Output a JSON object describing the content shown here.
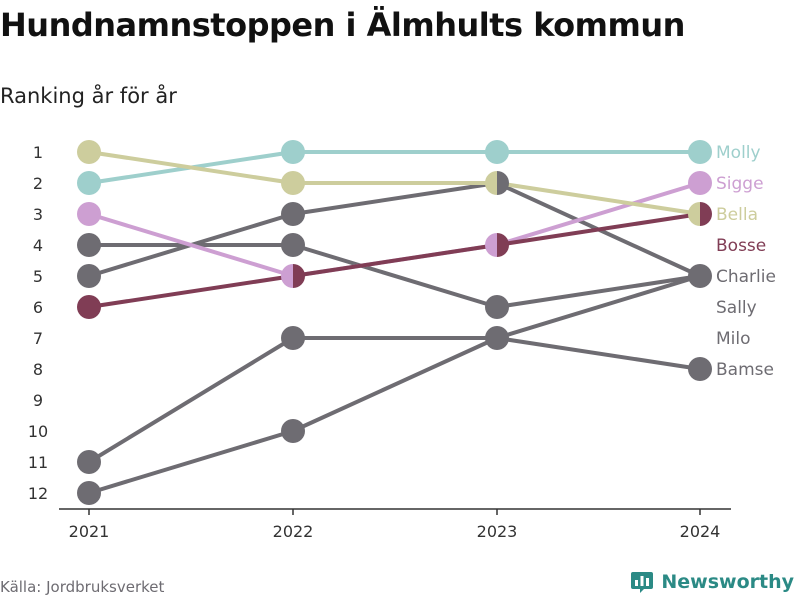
{
  "title": "Hundnamnstoppen i Älmhults kommun",
  "subtitle": "Ranking år för år",
  "source": "Källa: Jordbruksverket",
  "brand": "Newsworthy",
  "chart_data": {
    "type": "line",
    "x": [
      "2021",
      "2022",
      "2023",
      "2024"
    ],
    "y_ticks": [
      1,
      2,
      3,
      4,
      5,
      6,
      7,
      8,
      9,
      10,
      11,
      12
    ],
    "ylim": [
      1,
      12
    ],
    "y_reversed": true,
    "series": [
      {
        "name": "Molly",
        "color": "#9ecfcc",
        "values": [
          2,
          1,
          1,
          1
        ],
        "label_rank": 1
      },
      {
        "name": "Sigge",
        "color": "#cd9fd2",
        "values": [
          3,
          5,
          4,
          2
        ],
        "label_rank": 2
      },
      {
        "name": "Bella",
        "color": "#cdcd9d",
        "values": [
          1,
          2,
          2,
          3
        ],
        "label_rank": 3
      },
      {
        "name": "Bosse",
        "color": "#803d55",
        "values": [
          6,
          5,
          4,
          3
        ],
        "label_rank": 4
      },
      {
        "name": "Charlie",
        "color": "#6e6c72",
        "values": [
          5,
          3,
          2,
          5
        ],
        "label_rank": 5
      },
      {
        "name": "Sally",
        "color": "#6e6c72",
        "values": [
          4,
          4,
          6,
          5
        ],
        "label_rank": 6
      },
      {
        "name": "Milo",
        "color": "#6e6c72",
        "values": [
          11,
          7,
          7,
          5
        ],
        "label_rank": 7
      },
      {
        "name": "Bamse",
        "color": "#6e6c72",
        "values": [
          12,
          10,
          7,
          8
        ],
        "label_rank": 8
      }
    ]
  }
}
